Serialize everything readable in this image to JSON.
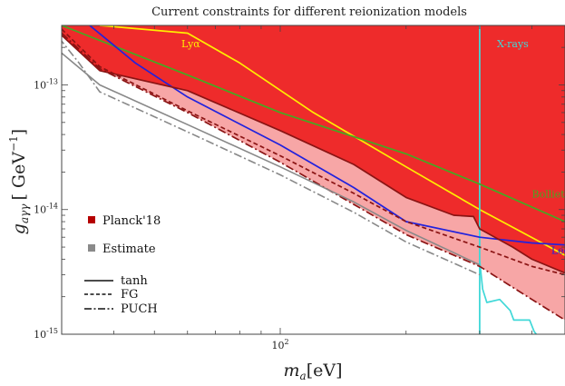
{
  "chart_data": {
    "type": "area",
    "title": "Current constraints for different reionization models",
    "xlabel": "m_a[eV]",
    "ylabel": "g_aγγ [ GeV^-1]",
    "x_scale": "log",
    "y_scale": "log",
    "xlim": [
      30,
      480
    ],
    "ylim": [
      1e-15,
      3e-13
    ],
    "x_ticks": [
      {
        "value": 100,
        "label": "10^2"
      }
    ],
    "y_ticks": [
      {
        "value": 1e-13,
        "label": "10^-13"
      },
      {
        "value": 1e-14,
        "label": "10^-14"
      },
      {
        "value": 1e-15,
        "label": "10^-15"
      }
    ],
    "colors": {
      "planck_fill": "#ee2b2b",
      "planck_light_fill": "#f7a6a6",
      "planck_legend": "#b50000",
      "estimate_legend": "#8a8a8a",
      "edge_dark": "#8b1414",
      "lya": "#ffee00",
      "xrays": "#40d8d8",
      "bolliet": "#44aa22",
      "leot": "#2222dd",
      "estimate_lines": "#888888"
    },
    "series": [
      {
        "name": "Lyα",
        "style": "line",
        "color": "#ffee00",
        "x": [
          37,
          60,
          80,
          120,
          200,
          300,
          480
        ],
        "y": [
          3e-13,
          2.6e-13,
          1.5e-13,
          6e-14,
          2.2e-14,
          1e-14,
          4.3e-15
        ]
      },
      {
        "name": "X-rays",
        "style": "vline",
        "color": "#40d8d8",
        "x_value": 300
      },
      {
        "name": "X-rays",
        "style": "line",
        "color": "#40d8d8",
        "x": [
          300,
          305,
          312,
          335,
          355,
          362,
          395,
          405,
          410
        ],
        "y": [
          3.9e-15,
          2.3e-15,
          1.8e-15,
          1.9e-15,
          1.55e-15,
          1.3e-15,
          1.3e-15,
          1.05e-15,
          1e-15
        ]
      },
      {
        "name": "Bolliet'21",
        "style": "line",
        "color": "#44aa22",
        "x": [
          30,
          60,
          100,
          200,
          300,
          480
        ],
        "y": [
          3e-13,
          1.2e-13,
          6e-14,
          2.8e-14,
          1.6e-14,
          8e-15
        ]
      },
      {
        "name": "LeoT",
        "style": "line",
        "color": "#2222dd",
        "x": [
          35,
          45,
          60,
          100,
          150,
          200,
          300,
          400,
          480
        ],
        "y": [
          3e-13,
          1.5e-13,
          8e-14,
          3.3e-14,
          1.5e-14,
          8e-15,
          6e-15,
          5.4e-15,
          5.2e-15
        ]
      },
      {
        "name": "Planck'18 (tanh)",
        "style": "line",
        "color": "#8b1414",
        "x": [
          30,
          37,
          60,
          100,
          150,
          200,
          260,
          290,
          300,
          360,
          400,
          480
        ],
        "y": [
          2.5e-13,
          1.3e-13,
          9e-14,
          4.3e-14,
          2.3e-14,
          1.25e-14,
          9e-15,
          8.8e-15,
          7e-15,
          5e-15,
          4e-15,
          3.1e-15
        ]
      },
      {
        "name": "Planck'18 (FG)",
        "style": "line",
        "color": "#8b1414",
        "x": [
          30,
          37,
          60,
          100,
          150,
          200,
          300,
          400,
          480
        ],
        "y": [
          2.8e-13,
          1.4e-13,
          6.2e-14,
          2.7e-14,
          1.35e-14,
          8e-15,
          5e-15,
          3.5e-15,
          3e-15
        ]
      },
      {
        "name": "Planck'18 (PUCH)",
        "style": "line",
        "color": "#8b1414",
        "x": [
          30,
          37,
          60,
          100,
          150,
          200,
          300,
          400,
          480
        ],
        "y": [
          2.6e-13,
          1.35e-13,
          6e-14,
          2.4e-14,
          1.1e-14,
          6.3e-15,
          3.5e-15,
          1.9e-15,
          1.3e-15
        ]
      },
      {
        "name": "Estimate (tanh)",
        "style": "line",
        "color": "#888888",
        "x": [
          30,
          37,
          60,
          100,
          150,
          200,
          300
        ],
        "y": [
          1.8e-13,
          1e-13,
          4.8e-14,
          2.2e-14,
          1.15e-14,
          6.8e-15,
          3.6e-15
        ]
      },
      {
        "name": "Estimate (PUCH)",
        "style": "line",
        "color": "#888888",
        "x": [
          28,
          33,
          37,
          60,
          100,
          150,
          200,
          300
        ],
        "y": [
          3e-13,
          1.5e-13,
          8.8e-14,
          4.2e-14,
          1.9e-14,
          9.5e-15,
          5.5e-15,
          3e-15
        ]
      }
    ],
    "regions": [
      {
        "name": "Planck'18 excluded (tanh)",
        "color": "#ee2b2b",
        "bounded_by": "Planck'18 (tanh)",
        "extends_to": "top"
      },
      {
        "name": "Planck'18 excluded (PUCH)",
        "color": "#f7a6a6",
        "bounded_by": "Planck'18 (PUCH)",
        "extends_to": "top"
      }
    ],
    "annotations": [
      {
        "text": "Lyα",
        "color": "#ffee00",
        "x": 58,
        "y": 2e-13
      },
      {
        "text": "X-rays",
        "color": "#40d8d8",
        "x": 330,
        "y": 2e-13
      },
      {
        "text": "Bolliet'21",
        "color": "#44aa22",
        "x": 400,
        "y": 1.25e-14
      },
      {
        "text": "LeoT",
        "color": "#2222dd",
        "x": 445,
        "y": 4.4e-15
      }
    ],
    "legend": {
      "placement": "bottom-left",
      "items": [
        {
          "label": "Planck'18",
          "marker": "square",
          "color": "#b50000"
        },
        {
          "label": "Estimate",
          "marker": "square",
          "color": "#8a8a8a"
        },
        {
          "label": "tanh",
          "marker": "line",
          "dash": "solid"
        },
        {
          "label": "FG",
          "marker": "line",
          "dash": "dashed"
        },
        {
          "label": "PUCH",
          "marker": "line",
          "dash": "dash-dot"
        }
      ]
    }
  },
  "labels": {
    "title": "Current constraints for different reionization models",
    "xlabel_main": "m",
    "xlabel_sub": "a",
    "xlabel_unit": "[eV]",
    "ylabel_main": "g",
    "ylabel_sub": "aγγ",
    "ylabel_unit": "[ GeV",
    "ylabel_exp": "−1",
    "ylabel_close": "]"
  }
}
